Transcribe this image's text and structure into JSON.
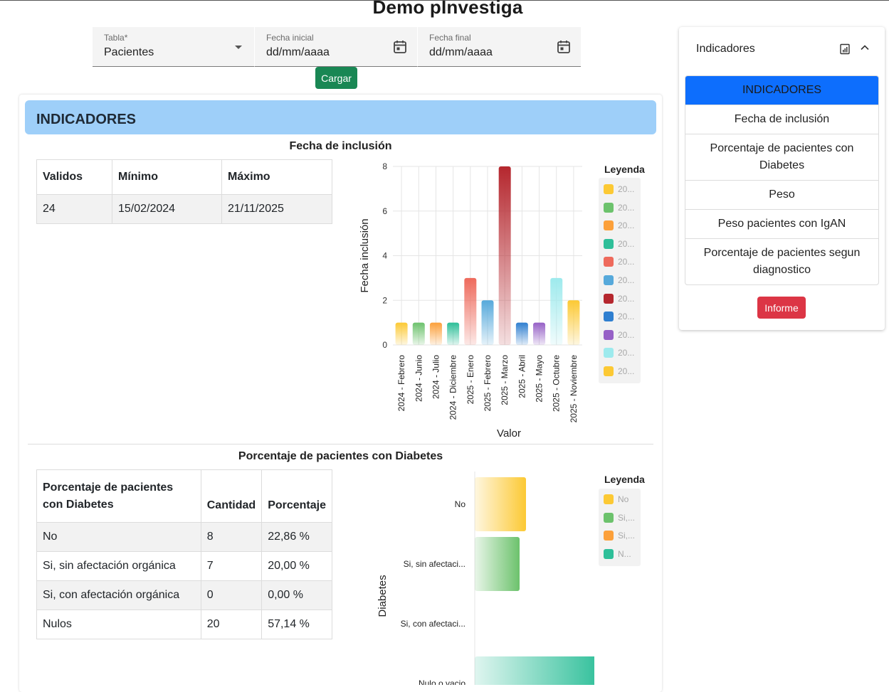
{
  "app": {
    "title": "Demo pInvestiga"
  },
  "filters": {
    "tabla": {
      "label": "Tabla*",
      "value": "Pacientes"
    },
    "fecha_inicial": {
      "label": "Fecha inicial",
      "value": "dd/mm/aaaa"
    },
    "fecha_final": {
      "label": "Fecha final",
      "value": "dd/mm/aaaa"
    },
    "load_label": "Cargar"
  },
  "main": {
    "header": "INDICADORES",
    "section1": {
      "title": "Fecha de inclusión",
      "table": {
        "headers": [
          "Validos",
          "Mínimo",
          "Máximo"
        ],
        "rows": [
          [
            "24",
            "15/02/2024",
            "21/11/2025"
          ]
        ]
      }
    },
    "section2": {
      "title": "Porcentaje de pacientes con Diabetes",
      "table": {
        "headers": [
          "Porcentaje de pacientes con Diabetes",
          "Cantidad",
          "Porcentaje"
        ],
        "rows": [
          [
            "No",
            "8",
            "22,86 %"
          ],
          [
            "Si, sin afectación orgánica",
            "7",
            "20,00 %"
          ],
          [
            "Si, con afectación orgánica",
            "0",
            "0,00 %"
          ],
          [
            "Nulos",
            "20",
            "57,14 %"
          ]
        ]
      }
    }
  },
  "chart_data": [
    {
      "type": "bar",
      "orientation": "vertical",
      "categories": [
        "2024 - Febrero",
        "2024 - Junio",
        "2024 - Julio",
        "2024 - Diciembre",
        "2025 - Enero",
        "2025 - Febrero",
        "2025 - Marzo",
        "2025 - Abril",
        "2025 - Mayo",
        "2025 - Octubre",
        "2025 - Noviembre"
      ],
      "values": [
        1,
        1,
        1,
        1,
        3,
        2,
        8,
        1,
        1,
        3,
        2
      ],
      "colors": [
        "#fcc934",
        "#6cc26c",
        "#fca03a",
        "#2ebf99",
        "#ee6a5c",
        "#56a9db",
        "#b5272e",
        "#2f7fd0",
        "#9660c6",
        "#9deaed",
        "#fcc934"
      ],
      "xlabel": "Valor",
      "ylabel": "Fecha inclusión",
      "yticks": [
        0,
        2,
        4,
        6,
        8
      ],
      "ylim": [
        0,
        8
      ],
      "grid": true,
      "legend": {
        "title": "Leyenda",
        "placement": "right",
        "entries": [
          "20...",
          "20...",
          "20...",
          "20...",
          "20...",
          "20...",
          "20...",
          "20...",
          "20...",
          "20...",
          "20..."
        ]
      }
    },
    {
      "type": "bar",
      "orientation": "horizontal",
      "categories": [
        "No",
        "Si, sin afectaci...",
        "Si, con afectaci...",
        "Nulo o vacio"
      ],
      "values": [
        8,
        7,
        0,
        20
      ],
      "colors": [
        "#fcc934",
        "#6cc26c",
        "#fca03a",
        "#2ebf99"
      ],
      "ylabel": "Diabetes",
      "legend": {
        "title": "Leyenda",
        "placement": "right",
        "entries": [
          "No",
          "Si,...",
          "Si,...",
          "N..."
        ]
      }
    }
  ],
  "side": {
    "title": "Indicadores",
    "icons": [
      "chart-icon",
      "chevron-up-icon"
    ],
    "items": [
      "INDICADORES",
      "Fecha de inclusión",
      "Porcentaje de pacientes con Diabetes",
      "Peso",
      "Peso pacientes con IgAN",
      "Porcentaje de pacientes segun diagnostico"
    ],
    "report_label": "Informe"
  },
  "colors": {
    "accent": "#0d6efd",
    "success": "#198754",
    "danger": "#dc3545",
    "header_bg": "#9ecff9"
  }
}
